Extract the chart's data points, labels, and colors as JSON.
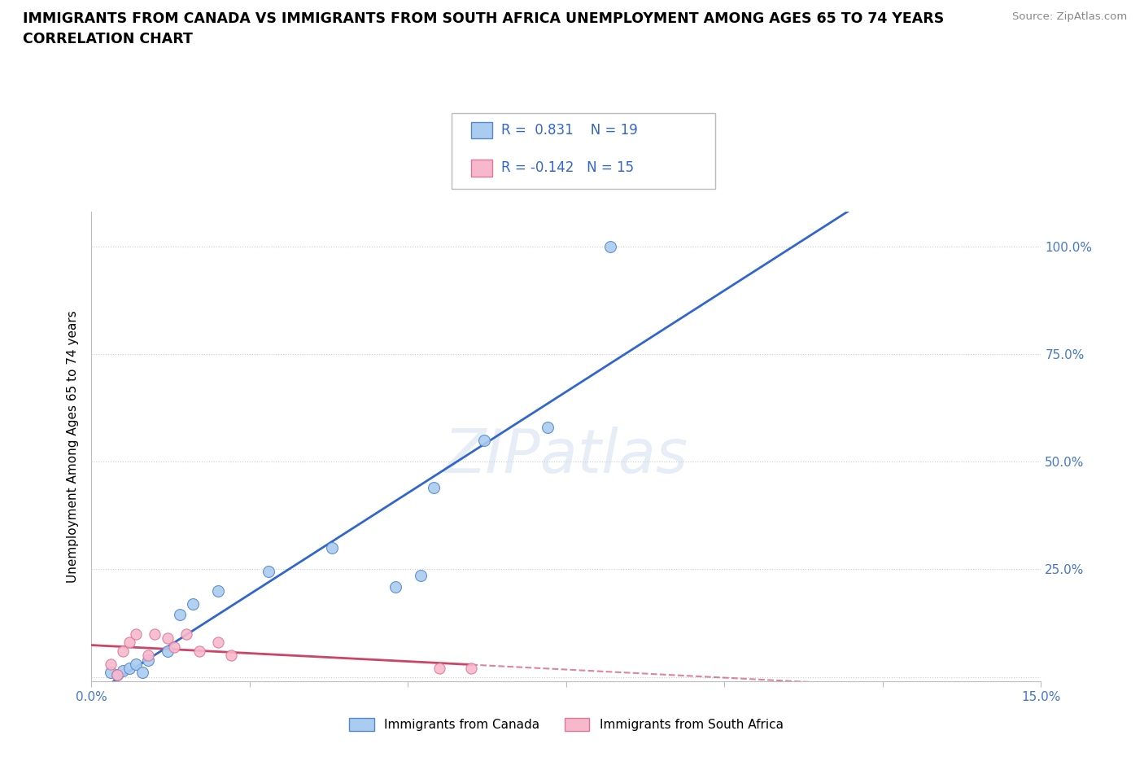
{
  "title_line1": "IMMIGRANTS FROM CANADA VS IMMIGRANTS FROM SOUTH AFRICA UNEMPLOYMENT AMONG AGES 65 TO 74 YEARS",
  "title_line2": "CORRELATION CHART",
  "source": "Source: ZipAtlas.com",
  "ylabel": "Unemployment Among Ages 65 to 74 years",
  "xlim": [
    0.0,
    0.15
  ],
  "ylim": [
    -0.01,
    1.08
  ],
  "xticks": [
    0.0,
    0.025,
    0.05,
    0.075,
    0.1,
    0.125,
    0.15
  ],
  "yticks": [
    0.0,
    0.25,
    0.5,
    0.75,
    1.0
  ],
  "canada_color": "#aaccf0",
  "canada_edge_color": "#5588cc",
  "southafrica_color": "#f8b8cc",
  "southafrica_edge_color": "#dd7799",
  "regression_canada_color": "#3366cc",
  "regression_southafrica_color": "#cc4466",
  "R_canada": 0.831,
  "N_canada": 19,
  "R_southafrica": -0.142,
  "N_southafrica": 15,
  "canada_x": [
    0.003,
    0.004,
    0.005,
    0.006,
    0.007,
    0.008,
    0.009,
    0.012,
    0.014,
    0.016,
    0.02,
    0.028,
    0.038,
    0.048,
    0.052,
    0.054,
    0.062,
    0.072,
    0.082
  ],
  "canada_y": [
    0.01,
    0.005,
    0.015,
    0.02,
    0.03,
    0.01,
    0.04,
    0.06,
    0.145,
    0.17,
    0.2,
    0.245,
    0.3,
    0.21,
    0.235,
    0.44,
    0.55,
    0.58,
    1.0
  ],
  "southafrica_x": [
    0.003,
    0.004,
    0.005,
    0.006,
    0.007,
    0.009,
    0.01,
    0.012,
    0.013,
    0.015,
    0.017,
    0.02,
    0.022,
    0.055,
    0.06
  ],
  "southafrica_y": [
    0.03,
    0.005,
    0.06,
    0.08,
    0.1,
    0.05,
    0.1,
    0.09,
    0.07,
    0.1,
    0.06,
    0.08,
    0.05,
    0.02,
    0.02
  ],
  "watermark": "ZIPatlas",
  "background_color": "#ffffff",
  "grid_color": "#cccccc",
  "dot_size_canada": 100,
  "dot_size_southafrica": 90,
  "legend_label_canada": "Immigrants from Canada",
  "legend_label_southafrica": "Immigrants from South Africa",
  "right_ytick_color": "#4477cc"
}
